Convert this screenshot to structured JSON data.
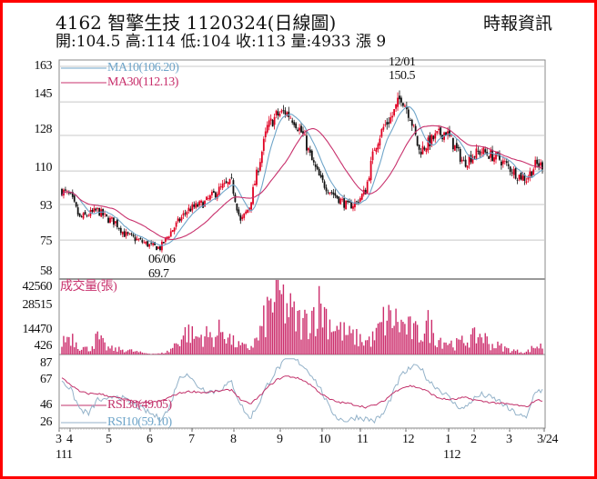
{
  "header": {
    "title": "4162  智擎生技 1120324(日線圖)",
    "quote": "開:104.5 高:114 低:104 收:113 量:4933 漲 9",
    "brand": "時報資訊"
  },
  "colors": {
    "ma10": "#6fa5c9",
    "ma30": "#c8306c",
    "up": "#e00022",
    "down": "#111111",
    "volume": "#cc2d6c",
    "rsi30": "#c2326b",
    "rsi10": "#93b2c9",
    "grid": "#c8c8c8"
  },
  "chart_data": [
    {
      "type": "candlestick",
      "title": "price",
      "y_ticks": [
        "163",
        "145",
        "128",
        "110",
        "93",
        "75",
        "58"
      ],
      "ylim": [
        58,
        163
      ],
      "legend": [
        {
          "name": "MA10(106.20)",
          "color_key": "ma10"
        },
        {
          "name": "MA30(112.13)",
          "color_key": "ma30"
        }
      ],
      "annotations": [
        {
          "date": "12/01",
          "value": "150.5"
        },
        {
          "date": "06/06",
          "value": "69.7"
        }
      ],
      "weekly_close": [
        100,
        97,
        86,
        88,
        90,
        86,
        84,
        78,
        76,
        74,
        72,
        71,
        78,
        84,
        90,
        92,
        94,
        98,
        102,
        104,
        84,
        92,
        112,
        132,
        138,
        140,
        136,
        128,
        115,
        105,
        100,
        96,
        92,
        94,
        100,
        122,
        132,
        138,
        148,
        138,
        120,
        124,
        128,
        130,
        122,
        114,
        118,
        120,
        118,
        116,
        112,
        108,
        106,
        113
      ]
    },
    {
      "type": "bar",
      "title": "成交量(張)",
      "y_ticks": [
        "42560",
        "28515",
        "14470",
        "426"
      ],
      "weekly_volume": [
        8000,
        12000,
        5000,
        3000,
        10000,
        4000,
        3000,
        3000,
        2000,
        1000,
        500,
        500,
        2000,
        8000,
        14000,
        10000,
        12000,
        10000,
        16000,
        8000,
        5000,
        4000,
        10000,
        25000,
        38000,
        30000,
        22000,
        18000,
        25000,
        30000,
        20000,
        15000,
        12000,
        10000,
        8000,
        10000,
        20000,
        22000,
        18000,
        15000,
        12000,
        18000,
        10000,
        8000,
        6000,
        8000,
        10000,
        12000,
        6000,
        5000,
        3000,
        2000,
        1500,
        4933
      ]
    },
    {
      "type": "line",
      "title": "RSI",
      "y_ticks": [
        "87",
        "67",
        "46",
        "26"
      ],
      "ylim": [
        26,
        87
      ],
      "legend": [
        {
          "name": "RSI30(49.05)",
          "color_key": "rsi30"
        },
        {
          "name": "RSI10(59.10)",
          "color_key": "rsi10"
        }
      ],
      "series": [
        {
          "name": "RSI10",
          "values": [
            70,
            60,
            40,
            35,
            50,
            48,
            55,
            50,
            45,
            40,
            35,
            30,
            40,
            70,
            78,
            65,
            60,
            58,
            62,
            68,
            45,
            30,
            45,
            65,
            80,
            90,
            92,
            85,
            75,
            60,
            40,
            30,
            28,
            32,
            30,
            28,
            35,
            55,
            75,
            82,
            85,
            70,
            62,
            55,
            45,
            40,
            50,
            55,
            52,
            48,
            40,
            35,
            30,
            59.1
          ]
        },
        {
          "name": "RSI30",
          "values": [
            72,
            65,
            58,
            56,
            56,
            54,
            52,
            50,
            48,
            46,
            47,
            48,
            52,
            56,
            58,
            58,
            57,
            58,
            59,
            60,
            50,
            45,
            52,
            62,
            70,
            74,
            73,
            70,
            64,
            56,
            50,
            47,
            46,
            44,
            42,
            44,
            48,
            56,
            62,
            64,
            62,
            58,
            52,
            50,
            50,
            52,
            50,
            48,
            47,
            46,
            45,
            44,
            42,
            49.05
          ]
        }
      ],
      "x_ticks": [
        "3",
        "4",
        "5",
        "6",
        "7",
        "8",
        "9",
        "10",
        "11",
        "12",
        "1",
        "2",
        "3",
        "3/24"
      ],
      "year_labels": [
        "111",
        "112"
      ]
    }
  ]
}
